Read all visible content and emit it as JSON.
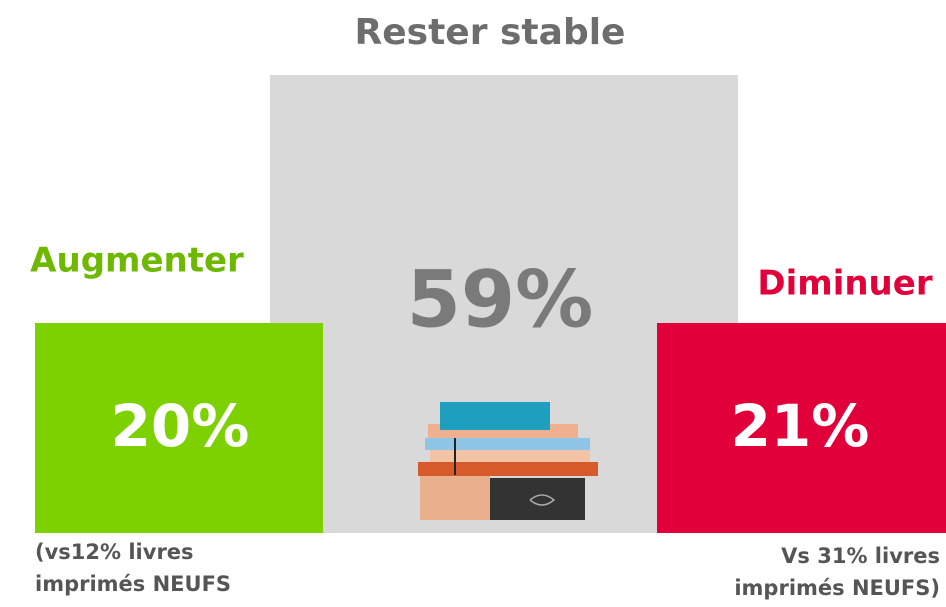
{
  "blocks": [
    {
      "label": "Augmenter",
      "value": "20%",
      "note": [
        "(vs12% livres",
        "imprimés NEUFS"
      ]
    },
    {
      "label": "Rester stable",
      "value": "59%"
    },
    {
      "label": "Diminuer",
      "value": "21%",
      "note": [
        "Vs 31% livres",
        "imprimés NEUFS)"
      ]
    }
  ]
}
